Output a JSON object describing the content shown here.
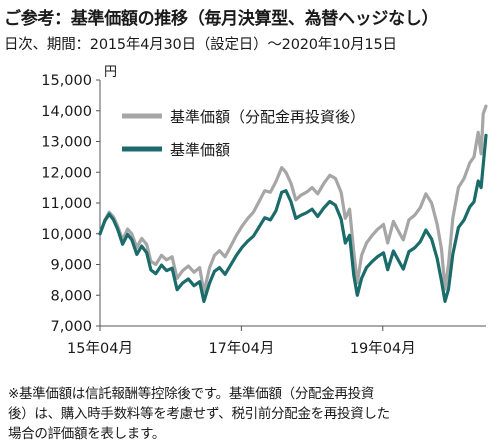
{
  "header": {
    "title": "ご参考：基準価額の推移（毎月決算型、為替ヘッジなし）",
    "period": "日次、期間：2015年4月30日（設定日）～2020年10月15日"
  },
  "footnote": [
    "※基準価額は信託報酬等控除後です。基準価額（分配金再投資",
    "後）は、購入時手数料等を考慮せず、税引前分配金を再投資した",
    "場合の評価額を表します。"
  ],
  "chart_data": {
    "type": "line",
    "ylabel": "円",
    "ylim": [
      7000,
      15000
    ],
    "y_ticks": [
      "7,000",
      "8,000",
      "9,000",
      "10,000",
      "11,000",
      "12,000",
      "13,000",
      "14,000",
      "15,000"
    ],
    "x_ticks": [
      {
        "label": "15年04月",
        "x": 2015.33
      },
      {
        "label": "17年04月",
        "x": 2017.33
      },
      {
        "label": "19年04月",
        "x": 2019.33
      }
    ],
    "xlim": [
      2015.33,
      2020.79
    ],
    "grid": false,
    "legend_position": "top-left",
    "colors": {
      "reinvested": "#a6a6a6",
      "nav": "#1b6b6b",
      "axis": "#555555"
    },
    "series": [
      {
        "name": "基準価額（分配金再投資後）",
        "key": "reinvested",
        "points": [
          [
            2015.33,
            10000
          ],
          [
            2015.4,
            10450
          ],
          [
            2015.46,
            10700
          ],
          [
            2015.52,
            10550
          ],
          [
            2015.58,
            10250
          ],
          [
            2015.65,
            9800
          ],
          [
            2015.72,
            10150
          ],
          [
            2015.78,
            10000
          ],
          [
            2015.85,
            9550
          ],
          [
            2015.92,
            9850
          ],
          [
            2015.99,
            9650
          ],
          [
            2016.05,
            9100
          ],
          [
            2016.12,
            9000
          ],
          [
            2016.2,
            9300
          ],
          [
            2016.27,
            9150
          ],
          [
            2016.35,
            9250
          ],
          [
            2016.42,
            8550
          ],
          [
            2016.5,
            8800
          ],
          [
            2016.58,
            8950
          ],
          [
            2016.66,
            8750
          ],
          [
            2016.74,
            8900
          ],
          [
            2016.8,
            8100
          ],
          [
            2016.88,
            8900
          ],
          [
            2016.95,
            9300
          ],
          [
            2017.02,
            9450
          ],
          [
            2017.1,
            9250
          ],
          [
            2017.18,
            9600
          ],
          [
            2017.26,
            9950
          ],
          [
            2017.34,
            10250
          ],
          [
            2017.42,
            10500
          ],
          [
            2017.5,
            10700
          ],
          [
            2017.58,
            11050
          ],
          [
            2017.66,
            11400
          ],
          [
            2017.74,
            11350
          ],
          [
            2017.82,
            11700
          ],
          [
            2017.9,
            12150
          ],
          [
            2017.96,
            12000
          ],
          [
            2018.03,
            11650
          ],
          [
            2018.1,
            11100
          ],
          [
            2018.17,
            11250
          ],
          [
            2018.25,
            11350
          ],
          [
            2018.33,
            11500
          ],
          [
            2018.41,
            11300
          ],
          [
            2018.5,
            11650
          ],
          [
            2018.58,
            11900
          ],
          [
            2018.66,
            11800
          ],
          [
            2018.74,
            11350
          ],
          [
            2018.8,
            10500
          ],
          [
            2018.86,
            10800
          ],
          [
            2018.92,
            9400
          ],
          [
            2018.97,
            8400
          ],
          [
            2019.03,
            9300
          ],
          [
            2019.1,
            9700
          ],
          [
            2019.18,
            9950
          ],
          [
            2019.26,
            10150
          ],
          [
            2019.34,
            10300
          ],
          [
            2019.4,
            9700
          ],
          [
            2019.48,
            10400
          ],
          [
            2019.56,
            10050
          ],
          [
            2019.62,
            9800
          ],
          [
            2019.7,
            10450
          ],
          [
            2019.78,
            10600
          ],
          [
            2019.86,
            10850
          ],
          [
            2019.94,
            11300
          ],
          [
            2020.02,
            11000
          ],
          [
            2020.1,
            10300
          ],
          [
            2020.16,
            9500
          ],
          [
            2020.21,
            8200
          ],
          [
            2020.26,
            9000
          ],
          [
            2020.32,
            10500
          ],
          [
            2020.4,
            11500
          ],
          [
            2020.48,
            11800
          ],
          [
            2020.56,
            12300
          ],
          [
            2020.62,
            12500
          ],
          [
            2020.68,
            13300
          ],
          [
            2020.72,
            12600
          ],
          [
            2020.75,
            13900
          ],
          [
            2020.79,
            14150
          ]
        ]
      },
      {
        "name": "基準価額",
        "key": "nav",
        "points": [
          [
            2015.33,
            10000
          ],
          [
            2015.4,
            10420
          ],
          [
            2015.46,
            10640
          ],
          [
            2015.52,
            10460
          ],
          [
            2015.58,
            10140
          ],
          [
            2015.65,
            9660
          ],
          [
            2015.72,
            9980
          ],
          [
            2015.78,
            9810
          ],
          [
            2015.85,
            9330
          ],
          [
            2015.92,
            9600
          ],
          [
            2015.99,
            9380
          ],
          [
            2016.05,
            8820
          ],
          [
            2016.12,
            8700
          ],
          [
            2016.2,
            8980
          ],
          [
            2016.27,
            8800
          ],
          [
            2016.35,
            8880
          ],
          [
            2016.42,
            8180
          ],
          [
            2016.5,
            8400
          ],
          [
            2016.58,
            8530
          ],
          [
            2016.66,
            8310
          ],
          [
            2016.74,
            8440
          ],
          [
            2016.8,
            7800
          ],
          [
            2016.88,
            8400
          ],
          [
            2016.95,
            8780
          ],
          [
            2017.02,
            8900
          ],
          [
            2017.1,
            8680
          ],
          [
            2017.18,
            8990
          ],
          [
            2017.26,
            9300
          ],
          [
            2017.34,
            9560
          ],
          [
            2017.42,
            9760
          ],
          [
            2017.5,
            9920
          ],
          [
            2017.58,
            10220
          ],
          [
            2017.66,
            10520
          ],
          [
            2017.74,
            10450
          ],
          [
            2017.82,
            10750
          ],
          [
            2017.9,
            11350
          ],
          [
            2017.96,
            11400
          ],
          [
            2018.03,
            11050
          ],
          [
            2018.1,
            10500
          ],
          [
            2018.17,
            10600
          ],
          [
            2018.25,
            10680
          ],
          [
            2018.33,
            10800
          ],
          [
            2018.41,
            10560
          ],
          [
            2018.5,
            10850
          ],
          [
            2018.58,
            11050
          ],
          [
            2018.66,
            10930
          ],
          [
            2018.74,
            10480
          ],
          [
            2018.8,
            9700
          ],
          [
            2018.86,
            9950
          ],
          [
            2018.92,
            8650
          ],
          [
            2018.97,
            8000
          ],
          [
            2019.03,
            8550
          ],
          [
            2019.1,
            8900
          ],
          [
            2019.18,
            9100
          ],
          [
            2019.26,
            9260
          ],
          [
            2019.34,
            9380
          ],
          [
            2019.4,
            8830
          ],
          [
            2019.48,
            9440
          ],
          [
            2019.56,
            9100
          ],
          [
            2019.62,
            8850
          ],
          [
            2019.7,
            9420
          ],
          [
            2019.78,
            9540
          ],
          [
            2019.86,
            9740
          ],
          [
            2019.94,
            10120
          ],
          [
            2020.02,
            9830
          ],
          [
            2020.1,
            9190
          ],
          [
            2020.16,
            8460
          ],
          [
            2020.21,
            7800
          ],
          [
            2020.26,
            8200
          ],
          [
            2020.32,
            9330
          ],
          [
            2020.4,
            10200
          ],
          [
            2020.48,
            10450
          ],
          [
            2020.56,
            10870
          ],
          [
            2020.62,
            11040
          ],
          [
            2020.68,
            11720
          ],
          [
            2020.72,
            11500
          ],
          [
            2020.75,
            12230
          ],
          [
            2020.79,
            13200
          ]
        ]
      }
    ]
  }
}
